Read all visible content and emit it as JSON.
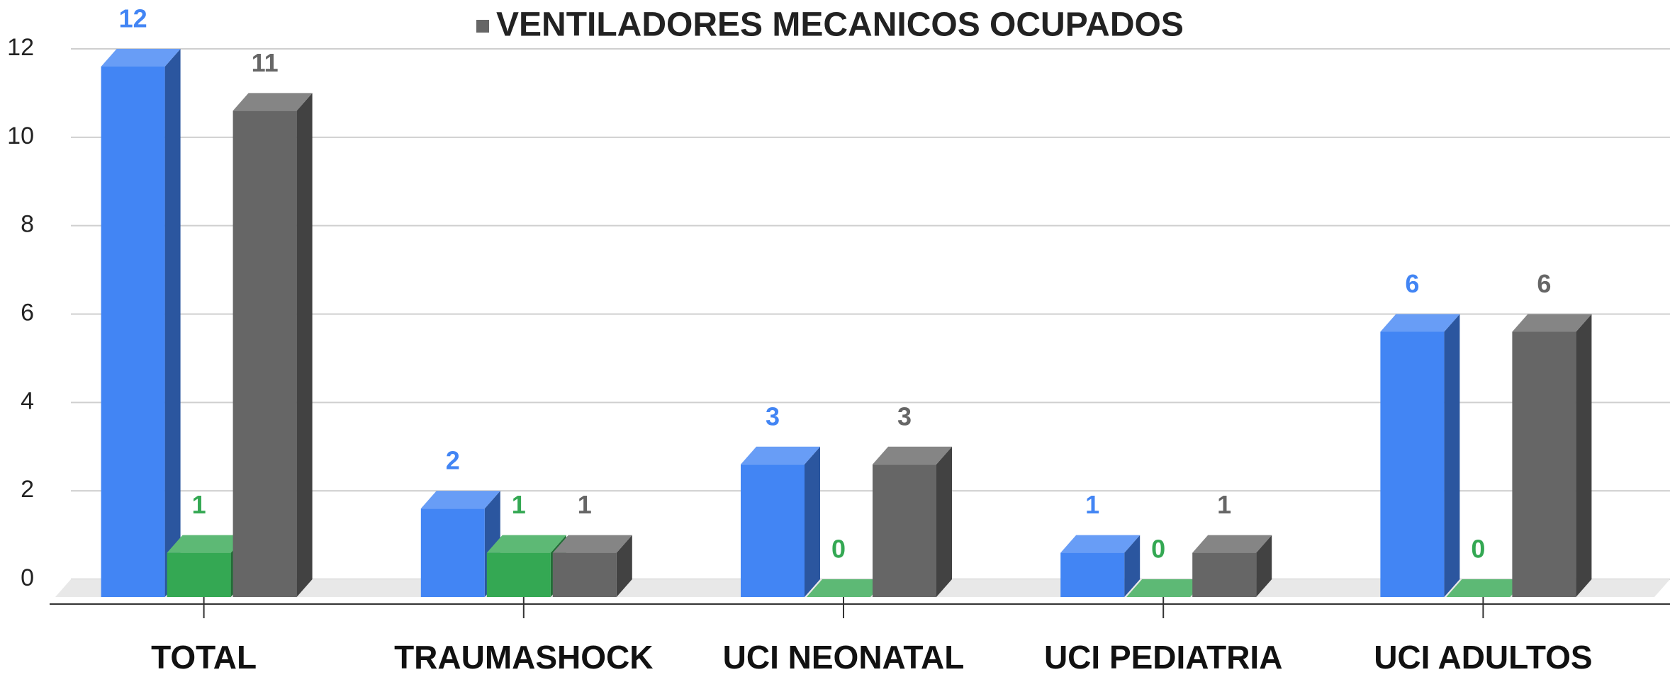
{
  "chart_data": {
    "type": "bar3d",
    "categories": [
      "TOTAL",
      "TRAUMASHOCK",
      "UCI NEONATAL",
      "UCI PEDIATRIA",
      "UCI ADULTOS"
    ],
    "series": [
      {
        "color": "#4285f4",
        "values": [
          12,
          2,
          3,
          1,
          6
        ]
      },
      {
        "color": "#34a853",
        "values": [
          1,
          1,
          0,
          0,
          0
        ]
      },
      {
        "name": "VENTILADORES MECANICOS OCUPADOS",
        "color": "#666666",
        "values": [
          11,
          1,
          3,
          1,
          6
        ]
      }
    ],
    "ylim": [
      0,
      12
    ],
    "yticks": [
      0,
      2,
      4,
      6,
      8,
      10,
      12
    ],
    "grid": true,
    "legend": "top",
    "data_labels": true
  }
}
